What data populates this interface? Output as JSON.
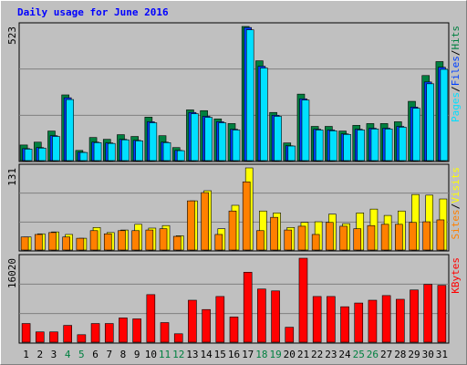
{
  "title": "Daily usage for June 2016",
  "legend_separator": "/",
  "chart_data": [
    {
      "type": "bar",
      "ylim": [
        0,
        523
      ],
      "yticks": [
        523
      ],
      "series": [
        {
          "name": "Hits",
          "color": "#008040",
          "values": [
            64,
            75,
            118,
            258,
            43,
            93,
            86,
            104,
            97,
            172,
            100,
            54,
            200,
            197,
            165,
            147,
            523,
            390,
            190,
            72,
            261,
            136,
            136,
            118,
            140,
            147,
            147,
            154,
            233,
            333,
            387
          ]
        },
        {
          "name": "Files",
          "color": "#0040ff",
          "values": [
            50,
            54,
            100,
            247,
            36,
            75,
            72,
            86,
            82,
            154,
            75,
            43,
            190,
            175,
            154,
            125,
            519,
            369,
            179,
            61,
            243,
            125,
            122,
            107,
            125,
            129,
            129,
            136,
            211,
            308,
            365
          ]
        },
        {
          "name": "Pages",
          "color": "#00e0ff",
          "values": [
            48,
            52,
            97,
            240,
            35,
            73,
            70,
            84,
            80,
            150,
            73,
            42,
            185,
            171,
            150,
            122,
            510,
            362,
            175,
            60,
            238,
            122,
            119,
            105,
            122,
            126,
            126,
            133,
            206,
            301,
            357
          ]
        }
      ]
    },
    {
      "type": "bar",
      "ylim": [
        0,
        131
      ],
      "yticks": [
        131
      ],
      "series": [
        {
          "name": "Visits",
          "color": "#ffff00",
          "values": [
            22,
            27,
            30,
            26,
            20,
            37,
            29,
            33,
            42,
            36,
            40,
            24,
            79,
            95,
            35,
            72,
            131,
            63,
            60,
            37,
            45,
            46,
            58,
            43,
            60,
            66,
            56,
            63,
            89,
            88,
            82
          ]
        },
        {
          "name": "Sites",
          "color": "#ff8000",
          "values": [
            22,
            26,
            29,
            22,
            20,
            32,
            27,
            32,
            32,
            33,
            35,
            23,
            79,
            92,
            26,
            63,
            109,
            32,
            53,
            33,
            39,
            26,
            45,
            39,
            35,
            40,
            42,
            42,
            45,
            46,
            49
          ]
        }
      ]
    },
    {
      "type": "bar",
      "ylim": [
        0,
        16020
      ],
      "yticks": [
        16020
      ],
      "categories": [
        "1",
        "2",
        "3",
        "4",
        "5",
        "6",
        "7",
        "8",
        "9",
        "10",
        "11",
        "12",
        "13",
        "14",
        "15",
        "16",
        "17",
        "18",
        "19",
        "20",
        "21",
        "22",
        "23",
        "24",
        "25",
        "26",
        "27",
        "28",
        "29",
        "30",
        "31"
      ],
      "weekend_color": "#008040",
      "weekends": [
        4,
        5,
        11,
        12,
        18,
        19,
        25,
        26
      ],
      "series": [
        {
          "name": "KBytes",
          "color": "#ff0000",
          "values": [
            3696,
            2112,
            2112,
            3344,
            1584,
            3696,
            3696,
            4752,
            4576,
            9152,
            3872,
            1760,
            8096,
            6336,
            8800,
            4928,
            13376,
            10208,
            9856,
            2992,
            16020,
            8800,
            8800,
            6864,
            7568,
            8096,
            8976,
            8272,
            10032,
            11088,
            10912
          ]
        }
      ]
    }
  ]
}
